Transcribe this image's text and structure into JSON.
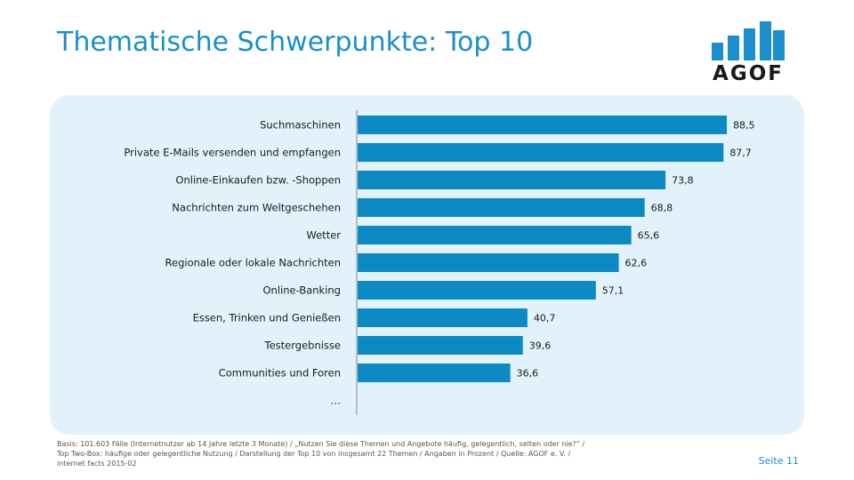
{
  "header": {
    "title": "Thematische Schwerpunkte: Top 10"
  },
  "logo": {
    "text": "AGOF",
    "icon": "bar-chart-logo-icon"
  },
  "colors": {
    "accent": "#1a8fc9",
    "bar": "#0b8ac4",
    "panel": "#e3f1fb"
  },
  "chart_data": {
    "type": "bar",
    "orientation": "horizontal",
    "categories": [
      "Suchmaschinen",
      "Private E-Mails versenden und empfangen",
      "Online-Einkaufen  bzw. -Shoppen",
      "Nachrichten zum Weltgeschehen",
      "Wetter",
      "Regionale oder lokale Nachrichten",
      "Online-Banking",
      "Essen, Trinken und Genießen",
      "Testergebnisse",
      "Communities  und Foren",
      "…"
    ],
    "values": [
      88.5,
      87.7,
      73.8,
      68.8,
      65.6,
      62.6,
      57.1,
      40.7,
      39.6,
      36.6,
      null
    ],
    "labels": [
      "88,5",
      "87,7",
      "73,8",
      "68,8",
      "65,6",
      "62,6",
      "57,1",
      "40,7",
      "39,6",
      "36,6",
      ""
    ],
    "xlim": [
      0,
      100
    ],
    "grid": false,
    "legend": "none"
  },
  "footer": {
    "footnote_lines": [
      "Basis: 101.603 Fälle (Internetnutzer ab 14 Jahre letzte 3 Monate) / „Nutzen Sie diese Themen und Angebote häufig, gelegentlich, selten oder nie?“ /",
      "Top Two-Box: häufige oder gelegentliche Nutzung / Darstellung der Top 10 von insgesamt 22 Themen / Angaben in Prozent / Quelle: AGOF e. V. /",
      "internet facts 2015-02"
    ],
    "page_label": "Seite  11"
  }
}
